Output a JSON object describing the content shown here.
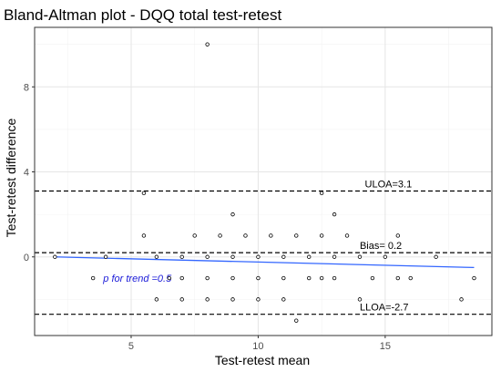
{
  "chart_data": {
    "type": "scatter",
    "title": "Bland-Altman plot - DQQ total test-retest",
    "xlabel": "Test-retest mean",
    "ylabel": "Test-retest difference",
    "xlim": [
      1.2,
      19.2
    ],
    "ylim": [
      -3.7,
      10.8
    ],
    "x_ticks": [
      5,
      10,
      15
    ],
    "y_ticks": [
      0,
      4,
      8
    ],
    "grid": true,
    "points": [
      {
        "x": 2,
        "y": 0
      },
      {
        "x": 4,
        "y": 0
      },
      {
        "x": 6,
        "y": 0
      },
      {
        "x": 7,
        "y": 0
      },
      {
        "x": 8,
        "y": 0
      },
      {
        "x": 9,
        "y": 0
      },
      {
        "x": 10,
        "y": 0
      },
      {
        "x": 11,
        "y": 0
      },
      {
        "x": 12,
        "y": 0
      },
      {
        "x": 13,
        "y": 0
      },
      {
        "x": 14,
        "y": 0
      },
      {
        "x": 15,
        "y": 0
      },
      {
        "x": 17,
        "y": 0
      },
      {
        "x": 3.5,
        "y": -1
      },
      {
        "x": 6.5,
        "y": -1
      },
      {
        "x": 7,
        "y": -1
      },
      {
        "x": 8,
        "y": -1
      },
      {
        "x": 9,
        "y": -1
      },
      {
        "x": 10,
        "y": -1
      },
      {
        "x": 11,
        "y": -1
      },
      {
        "x": 12,
        "y": -1
      },
      {
        "x": 12.5,
        "y": -1
      },
      {
        "x": 13,
        "y": -1
      },
      {
        "x": 14.5,
        "y": -1
      },
      {
        "x": 15.5,
        "y": -1
      },
      {
        "x": 16,
        "y": -1
      },
      {
        "x": 18.5,
        "y": -1
      },
      {
        "x": 6,
        "y": -2
      },
      {
        "x": 7,
        "y": -2
      },
      {
        "x": 8,
        "y": -2
      },
      {
        "x": 9,
        "y": -2
      },
      {
        "x": 10,
        "y": -2
      },
      {
        "x": 11,
        "y": -2
      },
      {
        "x": 14,
        "y": -2
      },
      {
        "x": 18,
        "y": -2
      },
      {
        "x": 11.5,
        "y": -3
      },
      {
        "x": 5.5,
        "y": 1
      },
      {
        "x": 7.5,
        "y": 1
      },
      {
        "x": 8.5,
        "y": 1
      },
      {
        "x": 9.5,
        "y": 1
      },
      {
        "x": 10.5,
        "y": 1
      },
      {
        "x": 11.5,
        "y": 1
      },
      {
        "x": 12.5,
        "y": 1
      },
      {
        "x": 13.5,
        "y": 1
      },
      {
        "x": 15.5,
        "y": 1
      },
      {
        "x": 9,
        "y": 2
      },
      {
        "x": 13,
        "y": 2
      },
      {
        "x": 5.5,
        "y": 3
      },
      {
        "x": 12.5,
        "y": 3
      },
      {
        "x": 8,
        "y": 10
      }
    ],
    "reference_lines": [
      {
        "label": "ULOA=3.1",
        "y": 3.1
      },
      {
        "label": "Bias= 0.2",
        "y": 0.2
      },
      {
        "label": "LLOA=-2.7",
        "y": -2.7
      }
    ],
    "trend_line": {
      "x": [
        2,
        18.5
      ],
      "y": [
        0,
        -0.5
      ],
      "color": "#3366ff"
    },
    "trend_annotation": {
      "text": "p for trend =0.5",
      "color": "#1a1ad8"
    }
  }
}
